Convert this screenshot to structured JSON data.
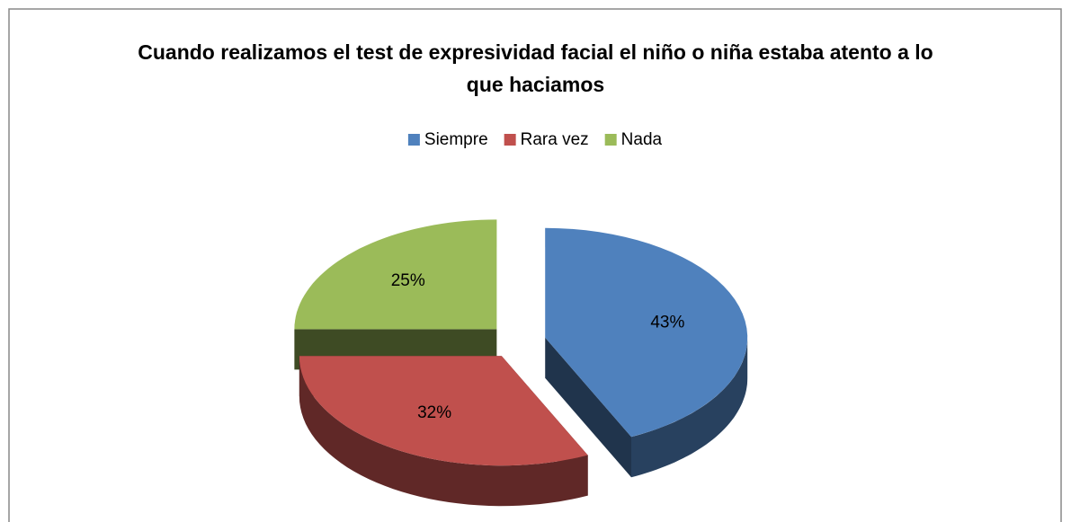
{
  "chart_data": {
    "type": "pie3d",
    "title": "Cuando realizamos el test de expresividad facial el niño o niña estaba atento a lo que haciamos",
    "categories": [
      "Siempre",
      "Rara vez",
      "Nada"
    ],
    "values": [
      43,
      32,
      25
    ],
    "value_labels": [
      "43%",
      "32%",
      "25%"
    ],
    "colors": [
      "#4f81bd",
      "#c0504d",
      "#9bbb59"
    ],
    "legend": "top"
  }
}
